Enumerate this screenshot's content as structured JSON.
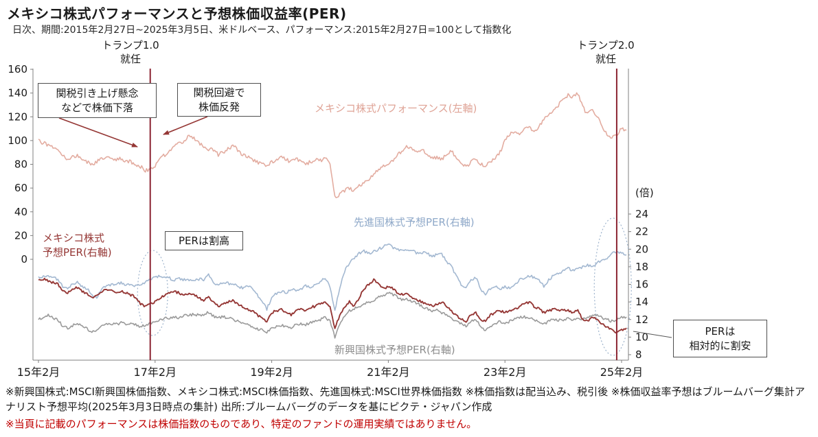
{
  "page": {
    "title": "メキシコ株式パフォーマンスと予想株価収益率(PER)",
    "subtitle": "日次、期間:2015年2月27日~2025年3月5日、米ドルベース、パフォーマンス:2015年2月27日=100として指数化",
    "footnote": "※新興国株式:MSCI新興国株価指数、メキシコ株式:MSCI株価指数、先進国株式:MSCI世界株価指数 ※株価指数は配当込み、税引後 ※株価収益率予想はブルームバーグ集計アナリスト予想平均(2025年3月3日時点の集計) 出所:ブルームバーグのデータを基にピクテ・ジャパン作成",
    "footnote_warning": "※当頁に記載のパフォーマンスは株価指数のものであり、特定のファンドの運用実績ではありません。"
  },
  "annotations": {
    "trump1": {
      "line1": "トランプ1.0",
      "line2": "就任",
      "month": 23
    },
    "trump2": {
      "line1": "トランプ2.0",
      "line2": "就任",
      "month": 119
    },
    "tariff_concern": {
      "line1": "関税引き上げ懸念",
      "line2": "などで株価下落"
    },
    "tariff_avoid": {
      "line1": "関税回避で",
      "line2": "株価反発"
    },
    "per_expensive": "PERは割高",
    "per_cheap": {
      "line1": "PERは",
      "line2": "相対的に割安"
    },
    "mexico_per_label": {
      "line1": "メキシコ株式",
      "line2": "予想PER(右軸)"
    }
  },
  "colors": {
    "performance": "#e3aca0",
    "developed": "#a3b8d1",
    "mexico_per": "#953735",
    "emerging": "#9a9a9a",
    "event_line": "#8b2331",
    "warning_text": "#c00000"
  },
  "chart_data": {
    "type": "line",
    "x_unit": "months since 2015-02",
    "x_tick_labels": [
      "15年2月",
      "17年2月",
      "19年2月",
      "21年2月",
      "23年2月",
      "25年2月"
    ],
    "x_tick_months": [
      0,
      24,
      48,
      72,
      96,
      120
    ],
    "left_axis": {
      "min": 0,
      "max": 160,
      "step": 20
    },
    "right_axis": {
      "min": 8,
      "max": 24,
      "step": 2,
      "unit_label": "(倍)"
    },
    "series": [
      {
        "name": "メキシコ株式パフォーマンス(左軸)",
        "axis": "left",
        "color": "#e3aca0",
        "values": [
          100,
          98,
          96,
          95,
          92,
          88,
          84,
          86,
          88,
          85,
          82,
          80,
          82,
          85,
          87,
          86,
          84,
          85,
          83,
          82,
          80,
          78,
          75,
          76,
          78,
          84,
          88,
          92,
          95,
          98,
          100,
          104,
          102,
          98,
          95,
          93,
          92,
          88,
          90,
          93,
          96,
          92,
          88,
          86,
          84,
          82,
          80,
          78,
          82,
          84,
          86,
          84,
          82,
          85,
          83,
          80,
          82,
          84,
          83,
          85,
          80,
          52,
          55,
          58,
          60,
          58,
          62,
          64,
          66,
          72,
          76,
          78,
          80,
          84,
          88,
          92,
          95,
          93,
          90,
          92,
          88,
          85,
          86,
          84,
          88,
          92,
          85,
          80,
          78,
          82,
          84,
          80,
          78,
          82,
          86,
          90,
          100,
          105,
          108,
          106,
          110,
          112,
          108,
          112,
          118,
          122,
          126,
          130,
          134,
          138,
          136,
          140,
          128,
          122,
          126,
          120,
          112,
          106,
          102,
          104,
          110,
          108
        ]
      },
      {
        "name": "先進国株式予想PER(右軸)",
        "axis": "right",
        "color": "#a3b8d1",
        "values": [
          16.8,
          16.9,
          17.0,
          16.8,
          16.5,
          15.8,
          15.5,
          16.0,
          16.2,
          15.8,
          15.5,
          14.8,
          14.5,
          15.5,
          15.8,
          15.9,
          16.0,
          16.2,
          15.9,
          16.0,
          15.8,
          15.9,
          16.3,
          16.6,
          16.8,
          16.9,
          16.8,
          16.7,
          16.5,
          16.6,
          16.5,
          16.4,
          16.5,
          16.6,
          16.5,
          17.2,
          16.2,
          16.0,
          16.2,
          16.1,
          16.0,
          15.8,
          15.6,
          15.8,
          15.5,
          14.8,
          14.2,
          13.2,
          14.5,
          15.0,
          15.2,
          15.0,
          15.5,
          15.2,
          15.5,
          15.8,
          15.7,
          16.0,
          16.3,
          16.8,
          15.8,
          13.0,
          15.5,
          17.5,
          18.5,
          19.0,
          19.5,
          19.8,
          19.5,
          19.8,
          20.0,
          20.3,
          20.5,
          20.2,
          20.0,
          19.8,
          20.0,
          19.8,
          19.5,
          19.6,
          19.5,
          19.2,
          19.4,
          19.5,
          18.5,
          18.0,
          17.0,
          16.0,
          15.5,
          16.5,
          16.8,
          15.5,
          14.8,
          15.5,
          15.8,
          15.5,
          15.8,
          15.5,
          16.0,
          16.5,
          16.8,
          17.0,
          16.8,
          16.5,
          15.8,
          16.5,
          17.0,
          17.2,
          17.5,
          17.8,
          17.6,
          17.8,
          18.0,
          18.2,
          18.0,
          18.5,
          18.8,
          19.0,
          19.5,
          19.8,
          19.5,
          19.3
        ]
      },
      {
        "name": "メキシコ株式予想PER(右軸)",
        "axis": "right",
        "color": "#953735",
        "values": [
          16.5,
          16.6,
          16.4,
          16.2,
          16.0,
          15.2,
          15.0,
          15.5,
          15.6,
          15.2,
          15.0,
          14.5,
          14.8,
          15.2,
          15.5,
          15.3,
          15.0,
          15.2,
          15.0,
          14.8,
          14.5,
          13.8,
          13.5,
          13.8,
          14.0,
          14.5,
          14.8,
          15.0,
          15.2,
          15.0,
          14.8,
          15.0,
          14.8,
          14.5,
          14.2,
          14.5,
          14.0,
          13.5,
          13.8,
          14.0,
          14.2,
          13.8,
          13.5,
          13.2,
          13.0,
          12.5,
          12.2,
          11.8,
          12.8,
          13.0,
          13.2,
          12.8,
          12.5,
          13.0,
          13.2,
          13.0,
          13.4,
          13.5,
          13.8,
          14.0,
          13.5,
          11.0,
          12.5,
          13.5,
          14.0,
          13.5,
          14.5,
          15.5,
          16.0,
          16.5,
          16.0,
          15.5,
          15.8,
          15.5,
          15.0,
          14.8,
          15.0,
          14.5,
          14.2,
          14.0,
          13.8,
          13.5,
          13.8,
          14.0,
          13.5,
          13.0,
          12.5,
          12.0,
          11.8,
          12.5,
          12.8,
          12.0,
          11.8,
          12.5,
          12.8,
          13.0,
          12.8,
          13.0,
          13.2,
          13.5,
          13.8,
          14.0,
          13.5,
          13.2,
          12.8,
          13.0,
          13.2,
          13.0,
          13.2,
          13.0,
          12.8,
          13.0,
          12.0,
          11.8,
          12.2,
          12.0,
          11.5,
          11.2,
          10.8,
          10.5,
          10.8,
          11.0
        ]
      },
      {
        "name": "新興国株式予想PER(右軸)",
        "axis": "right",
        "color": "#9a9a9a",
        "values": [
          12.0,
          12.2,
          12.5,
          12.2,
          12.0,
          11.2,
          11.0,
          11.3,
          11.5,
          11.2,
          11.0,
          10.5,
          10.8,
          11.2,
          11.5,
          11.4,
          11.5,
          11.6,
          11.5,
          11.6,
          11.4,
          11.2,
          11.4,
          11.6,
          11.8,
          12.0,
          12.1,
          12.2,
          12.3,
          12.2,
          12.4,
          12.5,
          12.6,
          12.5,
          12.6,
          12.8,
          12.4,
          12.2,
          12.3,
          12.2,
          12.0,
          11.8,
          11.5,
          11.4,
          11.2,
          10.9,
          10.8,
          10.5,
          11.0,
          11.2,
          11.4,
          11.2,
          11.0,
          11.4,
          11.5,
          11.4,
          11.6,
          11.8,
          12.0,
          12.2,
          11.8,
          10.0,
          11.5,
          12.5,
          13.0,
          13.2,
          13.5,
          13.8,
          14.0,
          14.2,
          14.5,
          14.8,
          15.0,
          14.8,
          14.5,
          14.2,
          14.3,
          14.0,
          13.8,
          13.5,
          13.2,
          13.0,
          13.1,
          12.8,
          12.5,
          12.2,
          11.8,
          11.5,
          11.2,
          11.8,
          12.0,
          11.2,
          10.8,
          11.2,
          11.5,
          11.8,
          11.6,
          11.8,
          12.0,
          12.2,
          12.3,
          12.2,
          12.0,
          11.8,
          11.5,
          11.8,
          12.0,
          11.9,
          12.0,
          12.1,
          12.0,
          12.2,
          12.0,
          12.2,
          12.4,
          12.5,
          12.2,
          12.0,
          11.8,
          12.0,
          12.2,
          12.3
        ]
      }
    ]
  }
}
